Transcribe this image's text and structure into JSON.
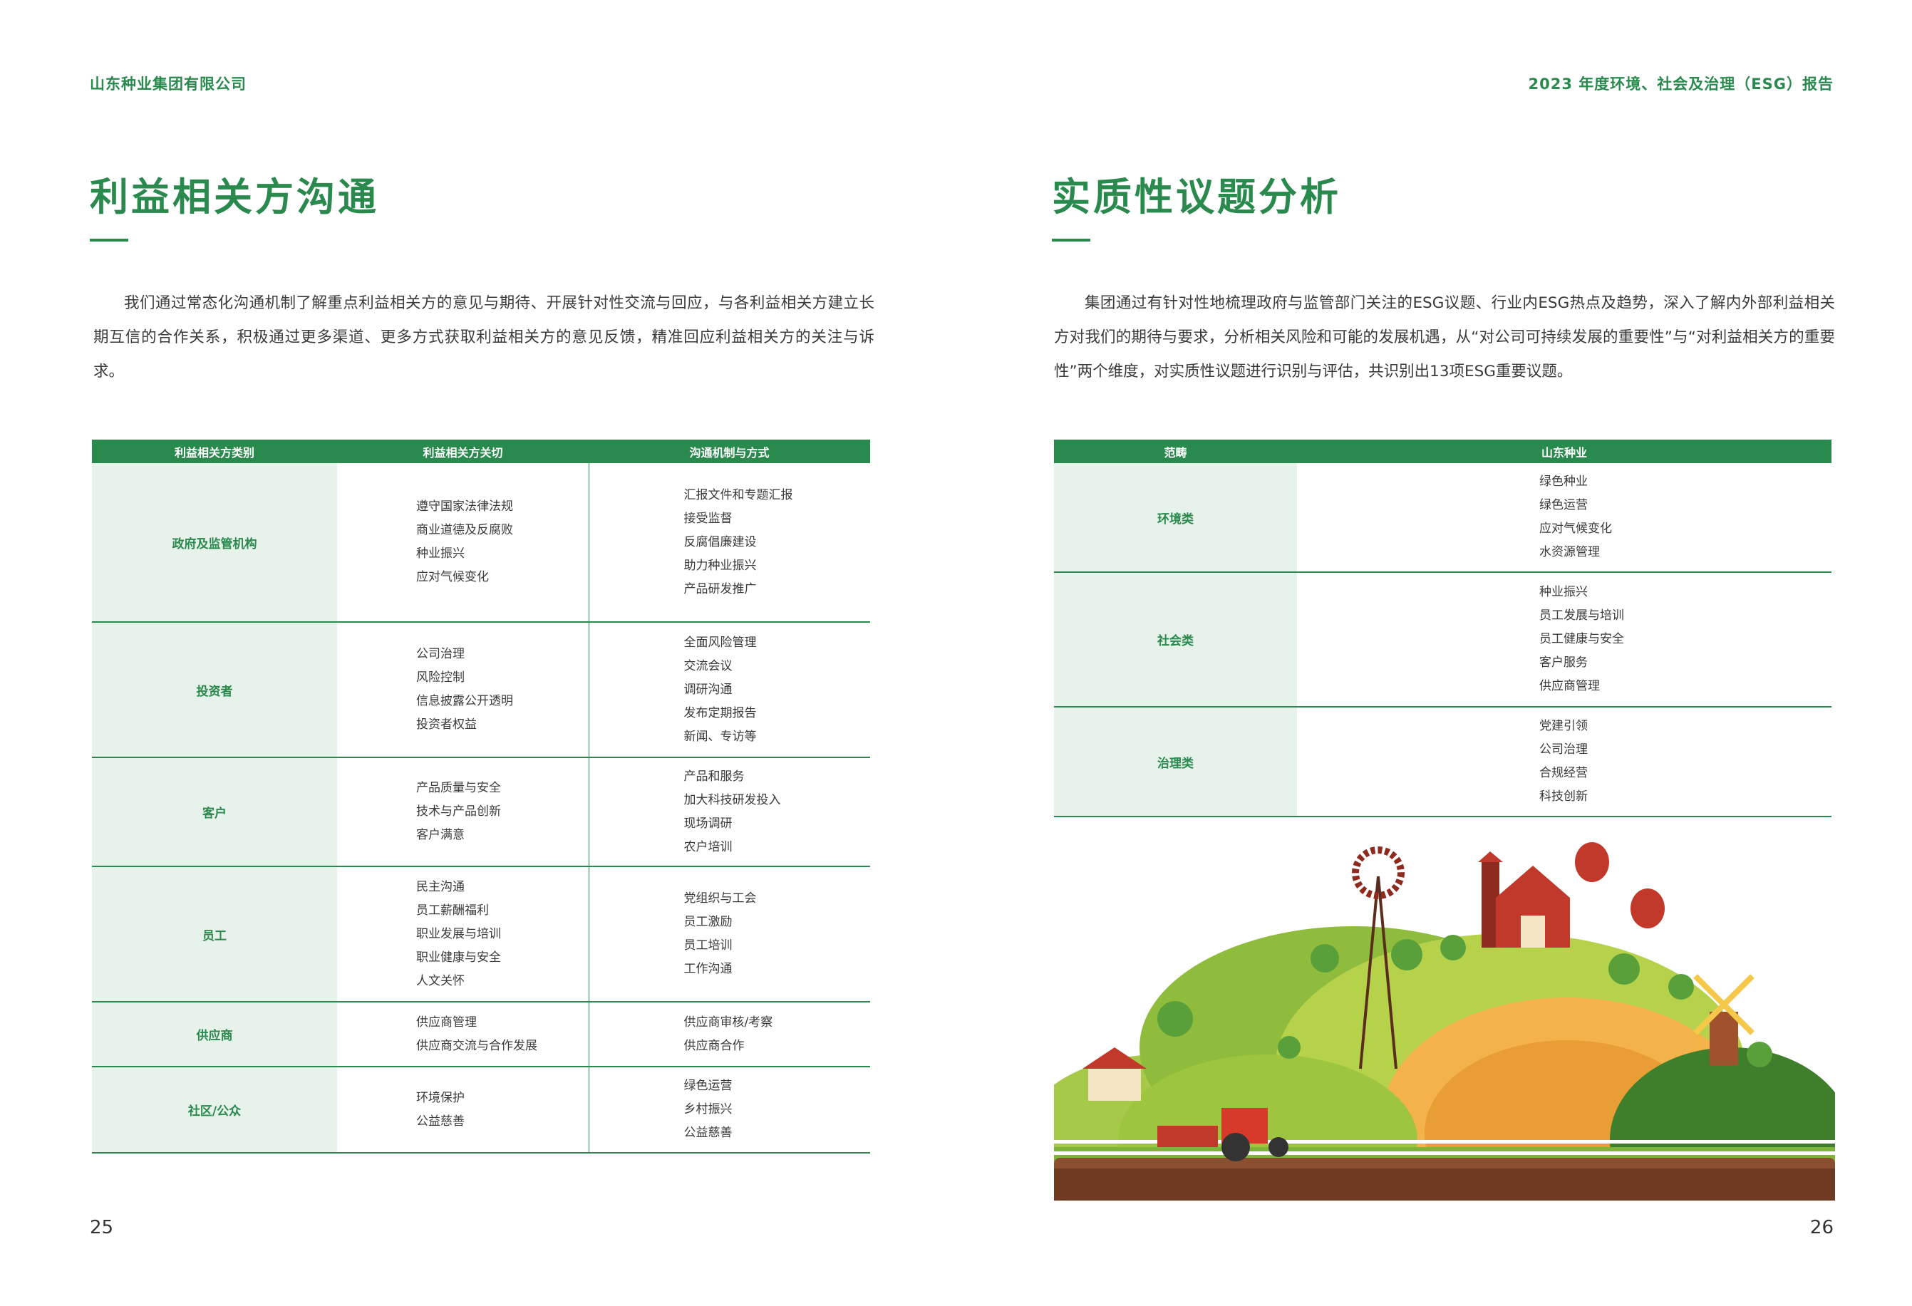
{
  "header": {
    "company": "山东种业集团有限公司",
    "report": "2023 年度环境、社会及治理（ESG）报告"
  },
  "left": {
    "title": "利益相关方沟通",
    "paragraph": "我们通过常态化沟通机制了解重点利益相关方的意见与期待、开展针对性交流与回应，与各利益相关方建立长期互信的合作关系，积极通过更多渠道、更多方式获取利益相关方的意见反馈，精准回应利益相关方的关注与诉求。",
    "table": {
      "headers": [
        "利益相关方类别",
        "利益相关方关切",
        "沟通机制与方式"
      ],
      "rows": [
        {
          "category": "政府及监管机构",
          "concerns": [
            "遵守国家法律法规",
            "商业道德及反腐败",
            "种业振兴",
            "应对气候变化"
          ],
          "channels": [
            "汇报文件和专题汇报",
            "接受监督",
            "反腐倡廉建设",
            "助力种业振兴",
            "产品研发推广"
          ]
        },
        {
          "category": "投资者",
          "concerns": [
            "公司治理",
            "风险控制",
            "信息披露公开透明",
            "投资者权益"
          ],
          "channels": [
            "全面风险管理",
            "交流会议",
            "调研沟通",
            "发布定期报告",
            "新闻、专访等"
          ]
        },
        {
          "category": "客户",
          "concerns": [
            "产品质量与安全",
            "技术与产品创新",
            "客户满意"
          ],
          "channels": [
            "产品和服务",
            "加大科技研发投入",
            "现场调研",
            "农户培训"
          ]
        },
        {
          "category": "员工",
          "concerns": [
            "民主沟通",
            "员工薪酬福利",
            "职业发展与培训",
            "职业健康与安全",
            "人文关怀"
          ],
          "channels": [
            "党组织与工会",
            "员工激励",
            "员工培训",
            "工作沟通"
          ]
        },
        {
          "category": "供应商",
          "concerns": [
            "供应商管理",
            "供应商交流与合作发展"
          ],
          "channels": [
            "供应商审核/考察",
            "供应商合作"
          ]
        },
        {
          "category": "社区/公众",
          "concerns": [
            "环境保护",
            "公益慈善"
          ],
          "channels": [
            "绿色运营",
            "乡村振兴",
            "公益慈善"
          ]
        }
      ]
    },
    "page_number": "25"
  },
  "right": {
    "title": "实质性议题分析",
    "paragraph": "集团通过有针对性地梳理政府与监管部门关注的ESG议题、行业内ESG热点及趋势，深入了解内外部利益相关方对我们的期待与要求，分析相关风险和可能的发展机遇，从“对公司可持续发展的重要性”与“对利益相关方的重要性”两个维度，对实质性议题进行识别与评估，共识别出13项ESG重要议题。",
    "table": {
      "headers": [
        "范畴",
        "山东种业"
      ],
      "rows": [
        {
          "category": "环境类",
          "topics": [
            "绿色种业",
            "绿色运营",
            "应对气候变化",
            "水资源管理"
          ]
        },
        {
          "category": "社会类",
          "topics": [
            "种业振兴",
            "员工发展与培训",
            "员工健康与安全",
            "客户服务",
            "供应商管理"
          ]
        },
        {
          "category": "治理类",
          "topics": [
            "党建引领",
            "公司治理",
            "合规经营",
            "科技创新"
          ]
        }
      ]
    },
    "page_number": "26"
  },
  "colors": {
    "brand_green": "#2a8a4e",
    "cell_tint": "#e7f2ea"
  }
}
